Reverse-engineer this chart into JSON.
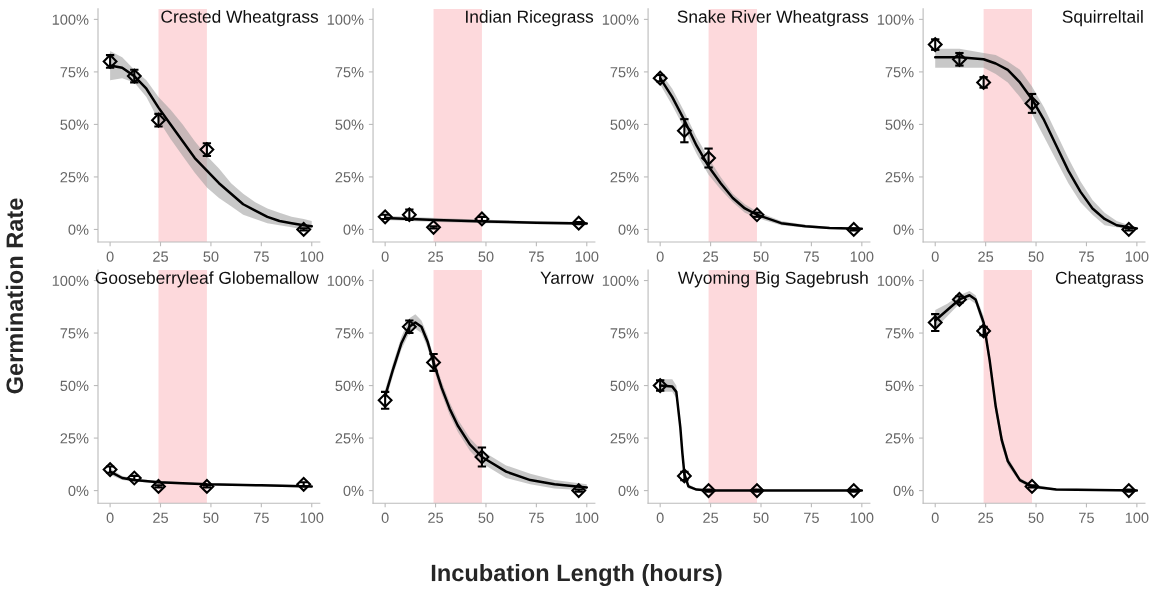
{
  "chart_data": [
    {
      "type": "scatter",
      "title": "Crested Wheatgrass",
      "ylabel": "Germination Rate",
      "xlim": [
        -6,
        104
      ],
      "ylim": [
        -6,
        105
      ],
      "xticks": [
        0,
        25,
        50,
        75,
        100
      ],
      "yticks": [
        {
          "value": 0,
          "label": "0%"
        },
        {
          "value": 25,
          "label": "25%"
        },
        {
          "value": 50,
          "label": "50%"
        },
        {
          "value": 75,
          "label": "75%"
        },
        {
          "value": 100,
          "label": "100%"
        }
      ],
      "bands": [
        {
          "axis": "x",
          "from": 24,
          "to": 48,
          "color": "#fdd9dc"
        }
      ],
      "series": [
        {
          "type": "line",
          "color": "#000000",
          "x": [
            0,
            6,
            12,
            18,
            24,
            30,
            36,
            42,
            48,
            54,
            60,
            66,
            72,
            78,
            84,
            90,
            96,
            100
          ],
          "values": [
            78,
            77,
            73,
            67,
            58,
            50,
            42,
            34,
            28,
            22,
            17,
            12,
            9,
            6,
            4,
            3,
            2,
            1.5
          ],
          "lower": [
            71,
            72,
            70,
            63,
            52,
            43,
            35,
            27,
            20,
            15,
            11,
            7,
            5,
            3,
            2,
            1,
            0,
            0
          ],
          "upper": [
            85,
            82,
            76,
            71,
            63,
            57,
            50,
            42,
            35,
            29,
            22,
            17,
            13,
            10,
            8,
            6,
            5,
            4
          ]
        },
        {
          "color": "#000000",
          "marker": "diamond",
          "x": [
            0,
            12,
            24,
            48,
            96
          ],
          "values": [
            80,
            73,
            52,
            38,
            0
          ],
          "errors": [
            3,
            3,
            3,
            3,
            0.5
          ]
        }
      ]
    },
    {
      "type": "scatter",
      "title": "Indian Ricegrass",
      "xlim": [
        -6,
        104
      ],
      "ylim": [
        -6,
        105
      ],
      "xticks": [
        0,
        25,
        50,
        75,
        100
      ],
      "yticks": [
        {
          "value": 0,
          "label": "0%"
        },
        {
          "value": 25,
          "label": "25%"
        },
        {
          "value": 50,
          "label": "50%"
        },
        {
          "value": 75,
          "label": "75%"
        },
        {
          "value": 100,
          "label": "100%"
        }
      ],
      "bands": [
        {
          "axis": "x",
          "from": 24,
          "to": 48,
          "color": "#fdd9dc"
        }
      ],
      "series": [
        {
          "type": "line",
          "color": "#000000",
          "x": [
            0,
            25,
            50,
            75,
            100
          ],
          "values": [
            5.5,
            4.5,
            3.8,
            3.2,
            2.8
          ],
          "lower": [
            4.5,
            3.5,
            3,
            2.5,
            2
          ],
          "upper": [
            6.5,
            5.5,
            4.6,
            3.9,
            3.6
          ]
        },
        {
          "color": "#000000",
          "marker": "diamond",
          "x": [
            0,
            12,
            24,
            48,
            96
          ],
          "values": [
            6,
            7,
            1,
            5,
            3
          ],
          "errors": [
            1,
            2.5,
            0.5,
            1,
            0.5
          ]
        }
      ]
    },
    {
      "type": "scatter",
      "title": "Snake River Wheatgrass",
      "xlim": [
        -6,
        104
      ],
      "ylim": [
        -6,
        105
      ],
      "xticks": [
        0,
        25,
        50,
        75,
        100
      ],
      "yticks": [
        {
          "value": 0,
          "label": "0%"
        },
        {
          "value": 25,
          "label": "25%"
        },
        {
          "value": 50,
          "label": "50%"
        },
        {
          "value": 75,
          "label": "75%"
        },
        {
          "value": 100,
          "label": "100%"
        }
      ],
      "bands": [
        {
          "axis": "x",
          "from": 24,
          "to": 48,
          "color": "#fdd9dc"
        }
      ],
      "series": [
        {
          "type": "line",
          "color": "#000000",
          "x": [
            0,
            6,
            12,
            18,
            24,
            30,
            36,
            42,
            48,
            60,
            72,
            84,
            100
          ],
          "values": [
            72,
            63,
            52,
            40,
            30,
            22,
            15,
            10,
            7,
            3,
            1.5,
            0.7,
            0.3
          ],
          "lower": [
            69,
            59,
            48,
            36,
            26,
            19,
            13,
            8,
            5.5,
            2,
            0.8,
            0.2,
            0
          ],
          "upper": [
            75,
            67,
            56,
            44,
            34,
            25,
            17,
            12,
            8.5,
            4,
            2.2,
            1.2,
            0.6
          ]
        },
        {
          "color": "#000000",
          "marker": "diamond",
          "x": [
            0,
            12,
            24,
            48,
            96
          ],
          "values": [
            72,
            47,
            34,
            7,
            0
          ],
          "errors": [
            1.5,
            5.5,
            4.5,
            1,
            0.5
          ]
        }
      ]
    },
    {
      "type": "scatter",
      "title": "Squirreltail",
      "xlim": [
        -6,
        104
      ],
      "ylim": [
        -6,
        105
      ],
      "xticks": [
        0,
        25,
        50,
        75,
        100
      ],
      "yticks": [
        {
          "value": 0,
          "label": "0%"
        },
        {
          "value": 25,
          "label": "25%"
        },
        {
          "value": 50,
          "label": "50%"
        },
        {
          "value": 75,
          "label": "75%"
        },
        {
          "value": 100,
          "label": "100%"
        }
      ],
      "bands": [
        {
          "axis": "x",
          "from": 24,
          "to": 48,
          "color": "#fdd9dc"
        }
      ],
      "series": [
        {
          "type": "line",
          "color": "#000000",
          "x": [
            0,
            12,
            24,
            30,
            36,
            42,
            48,
            54,
            60,
            66,
            72,
            78,
            84,
            90,
            96,
            100
          ],
          "values": [
            82,
            82,
            81,
            79,
            76,
            70,
            62,
            52,
            40,
            28,
            18,
            10,
            5,
            2,
            1,
            0.5
          ],
          "lower": [
            77,
            77,
            77,
            74,
            70,
            63,
            55,
            44,
            33,
            22,
            13,
            7,
            2,
            1,
            0,
            0
          ],
          "upper": [
            86,
            86,
            84,
            83,
            80,
            76,
            68,
            58,
            46,
            34,
            23,
            14,
            8,
            4,
            2,
            1
          ]
        },
        {
          "color": "#000000",
          "marker": "diamond",
          "x": [
            0,
            12,
            24,
            48,
            96
          ],
          "values": [
            88,
            81,
            70,
            60,
            0
          ],
          "errors": [
            2.5,
            3,
            2.5,
            4.5,
            0.5
          ]
        }
      ]
    },
    {
      "type": "scatter",
      "title": "Gooseberryleaf Globemallow",
      "xlim": [
        -6,
        104
      ],
      "ylim": [
        -6,
        105
      ],
      "xticks": [
        0,
        25,
        50,
        75,
        100
      ],
      "yticks": [
        {
          "value": 0,
          "label": "0%"
        },
        {
          "value": 25,
          "label": "25%"
        },
        {
          "value": 50,
          "label": "50%"
        },
        {
          "value": 75,
          "label": "75%"
        },
        {
          "value": 100,
          "label": "100%"
        }
      ],
      "bands": [
        {
          "axis": "x",
          "from": 24,
          "to": 48,
          "color": "#fdd9dc"
        }
      ],
      "series": [
        {
          "type": "line",
          "color": "#000000",
          "x": [
            0,
            6,
            12,
            24,
            48,
            75,
            100
          ],
          "values": [
            9,
            6,
            5,
            4,
            3,
            2.5,
            2
          ],
          "lower": [
            7.5,
            5,
            4.3,
            3.4,
            2.5,
            2,
            1.5
          ],
          "upper": [
            10.5,
            7,
            5.7,
            4.6,
            3.5,
            3,
            2.5
          ]
        },
        {
          "color": "#000000",
          "marker": "diamond",
          "x": [
            0,
            12,
            24,
            48,
            96
          ],
          "values": [
            10,
            6,
            2,
            2,
            3
          ],
          "errors": [
            1.5,
            1,
            0.5,
            0.5,
            1
          ]
        }
      ]
    },
    {
      "type": "scatter",
      "title": "Yarrow",
      "xlabel": "Incubation Length (hours)",
      "xlim": [
        -6,
        104
      ],
      "ylim": [
        -6,
        105
      ],
      "xticks": [
        0,
        25,
        50,
        75,
        100
      ],
      "yticks": [
        {
          "value": 0,
          "label": "0%"
        },
        {
          "value": 25,
          "label": "25%"
        },
        {
          "value": 50,
          "label": "50%"
        },
        {
          "value": 75,
          "label": "75%"
        },
        {
          "value": 100,
          "label": "100%"
        }
      ],
      "bands": [
        {
          "axis": "x",
          "from": 24,
          "to": 48,
          "color": "#fdd9dc"
        }
      ],
      "series": [
        {
          "type": "line",
          "color": "#000000",
          "x": [
            0,
            4,
            8,
            12,
            15,
            18,
            21,
            24,
            28,
            32,
            36,
            42,
            48,
            60,
            72,
            84,
            100
          ],
          "values": [
            45,
            58,
            70,
            78,
            80,
            78,
            71,
            61,
            49,
            39,
            31,
            22,
            16,
            9,
            5,
            3,
            1.5
          ],
          "lower": [
            42,
            55,
            67,
            75,
            77,
            75,
            68,
            58,
            46,
            36,
            28,
            19,
            13,
            6,
            3,
            1,
            0
          ],
          "upper": [
            48,
            61,
            73,
            82,
            84,
            81,
            74,
            64,
            52,
            42,
            34,
            25,
            19,
            12,
            8,
            5,
            3
          ]
        },
        {
          "color": "#000000",
          "marker": "diamond",
          "x": [
            0,
            12,
            24,
            48,
            96
          ],
          "values": [
            43,
            78,
            61,
            16,
            0
          ],
          "errors": [
            4,
            3,
            4,
            4.5,
            0.5
          ]
        }
      ]
    },
    {
      "type": "scatter",
      "title": "Wyoming Big Sagebrush",
      "xlim": [
        -6,
        104
      ],
      "ylim": [
        -6,
        105
      ],
      "xticks": [
        0,
        25,
        50,
        75,
        100
      ],
      "yticks": [
        {
          "value": 0,
          "label": "0%"
        },
        {
          "value": 25,
          "label": "25%"
        },
        {
          "value": 50,
          "label": "50%"
        },
        {
          "value": 75,
          "label": "75%"
        },
        {
          "value": 100,
          "label": "100%"
        }
      ],
      "bands": [
        {
          "axis": "x",
          "from": 24,
          "to": 48,
          "color": "#fdd9dc"
        }
      ],
      "series": [
        {
          "type": "line",
          "color": "#000000",
          "x": [
            0,
            6,
            8,
            10,
            11,
            12,
            14,
            18,
            24,
            100
          ],
          "values": [
            50,
            49.5,
            47,
            30,
            18,
            8,
            2,
            0.5,
            0,
            0
          ],
          "lower": [
            47,
            47,
            44,
            27,
            15,
            6,
            1,
            0,
            0,
            0
          ],
          "upper": [
            53,
            53,
            50,
            33,
            21,
            10,
            3,
            1,
            0.5,
            0.5
          ]
        },
        {
          "color": "#000000",
          "marker": "diamond",
          "x": [
            0,
            12,
            24,
            48,
            96
          ],
          "values": [
            50,
            7,
            0,
            0,
            0
          ],
          "errors": [
            2.5,
            2,
            0.5,
            0.5,
            0.5
          ]
        }
      ]
    },
    {
      "type": "scatter",
      "title": "Cheatgrass",
      "xlim": [
        -6,
        104
      ],
      "ylim": [
        -6,
        105
      ],
      "xticks": [
        0,
        25,
        50,
        75,
        100
      ],
      "yticks": [
        {
          "value": 0,
          "label": "0%"
        },
        {
          "value": 25,
          "label": "25%"
        },
        {
          "value": 50,
          "label": "50%"
        },
        {
          "value": 75,
          "label": "75%"
        },
        {
          "value": 100,
          "label": "100%"
        }
      ],
      "bands": [
        {
          "axis": "x",
          "from": 24,
          "to": 48,
          "color": "#fdd9dc"
        }
      ],
      "series": [
        {
          "type": "line",
          "color": "#000000",
          "x": [
            0,
            6,
            12,
            17,
            20,
            24,
            27,
            30,
            33,
            36,
            42,
            48,
            60,
            100
          ],
          "values": [
            81,
            86,
            91,
            93,
            91,
            80,
            62,
            40,
            24,
            14,
            5,
            2,
            0.5,
            0
          ],
          "lower": [
            77,
            83,
            89,
            91,
            89,
            77,
            59,
            37,
            21,
            12,
            4,
            1,
            0,
            0
          ],
          "upper": [
            86,
            89,
            93,
            95,
            93,
            83,
            65,
            43,
            27,
            16,
            6,
            3,
            1,
            0.5
          ]
        },
        {
          "color": "#000000",
          "marker": "diamond",
          "x": [
            0,
            12,
            24,
            48,
            96
          ],
          "values": [
            80,
            91,
            76,
            2,
            0
          ],
          "errors": [
            4,
            1.5,
            2,
            0.5,
            0.5
          ]
        }
      ]
    }
  ]
}
